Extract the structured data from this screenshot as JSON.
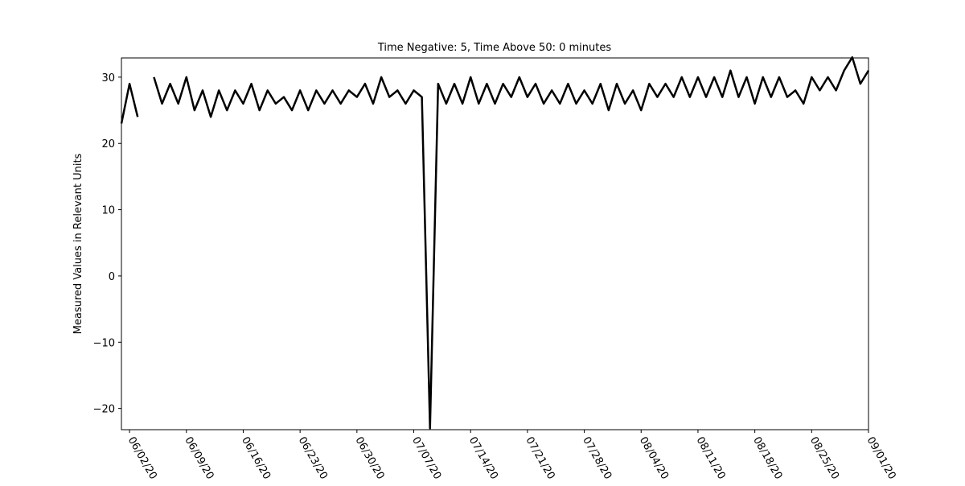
{
  "chart_data": {
    "type": "line",
    "title": "Time Negative: 5, Time Above 50: 0 minutes",
    "y_label": "Measured Values in Relevant Units",
    "x": [
      "2020-06-01",
      "2020-06-02",
      "2020-06-03",
      "2020-06-04",
      "2020-06-05",
      "2020-06-06",
      "2020-06-07",
      "2020-06-08",
      "2020-06-09",
      "2020-06-10",
      "2020-06-11",
      "2020-06-12",
      "2020-06-13",
      "2020-06-14",
      "2020-06-15",
      "2020-06-16",
      "2020-06-17",
      "2020-06-18",
      "2020-06-19",
      "2020-06-20",
      "2020-06-21",
      "2020-06-22",
      "2020-06-23",
      "2020-06-24",
      "2020-06-25",
      "2020-06-26",
      "2020-06-27",
      "2020-06-28",
      "2020-06-29",
      "2020-06-30",
      "2020-07-01",
      "2020-07-02",
      "2020-07-03",
      "2020-07-04",
      "2020-07-05",
      "2020-07-06",
      "2020-07-07",
      "2020-07-08",
      "2020-07-09",
      "2020-07-10",
      "2020-07-11",
      "2020-07-12",
      "2020-07-13",
      "2020-07-14",
      "2020-07-15",
      "2020-07-16",
      "2020-07-17",
      "2020-07-18",
      "2020-07-19",
      "2020-07-20",
      "2020-07-21",
      "2020-07-22",
      "2020-07-23",
      "2020-07-24",
      "2020-07-25",
      "2020-07-26",
      "2020-07-27",
      "2020-07-28",
      "2020-07-29",
      "2020-07-30",
      "2020-07-31",
      "2020-08-01",
      "2020-08-02",
      "2020-08-03",
      "2020-08-04",
      "2020-08-05",
      "2020-08-06",
      "2020-08-07",
      "2020-08-08",
      "2020-08-09",
      "2020-08-10",
      "2020-08-11",
      "2020-08-12",
      "2020-08-13",
      "2020-08-14",
      "2020-08-15",
      "2020-08-16",
      "2020-08-17",
      "2020-08-18",
      "2020-08-19",
      "2020-08-20",
      "2020-08-21",
      "2020-08-22",
      "2020-08-23",
      "2020-08-24",
      "2020-08-25",
      "2020-08-26",
      "2020-08-27",
      "2020-08-28",
      "2020-08-29",
      "2020-08-30",
      "2020-08-31",
      "2020-09-01"
    ],
    "series": [
      {
        "color": "#000000",
        "values": [
          23,
          29,
          24,
          null,
          30,
          26,
          29,
          26,
          30,
          25,
          28,
          24,
          28,
          25,
          28,
          26,
          29,
          25,
          28,
          26,
          27,
          25,
          28,
          25,
          28,
          26,
          28,
          26,
          28,
          27,
          29,
          26,
          30,
          27,
          28,
          26,
          28,
          27,
          -23,
          29,
          26,
          29,
          26,
          30,
          26,
          29,
          26,
          29,
          27,
          30,
          27,
          29,
          26,
          28,
          26,
          29,
          26,
          28,
          26,
          29,
          25,
          29,
          26,
          28,
          25,
          29,
          27,
          29,
          27,
          30,
          27,
          30,
          27,
          30,
          27,
          31,
          27,
          30,
          26,
          30,
          27,
          30,
          27,
          28,
          26,
          30,
          28,
          30,
          28,
          31,
          33,
          29,
          31
        ]
      }
    ],
    "xlim": [
      "2020-06-01",
      "2020-09-01"
    ],
    "xticks": [
      {
        "value": "2020-06-02",
        "label": "06/02/20"
      },
      {
        "value": "2020-06-09",
        "label": "06/09/20"
      },
      {
        "value": "2020-06-16",
        "label": "06/16/20"
      },
      {
        "value": "2020-06-23",
        "label": "06/23/20"
      },
      {
        "value": "2020-06-30",
        "label": "06/30/20"
      },
      {
        "value": "2020-07-07",
        "label": "07/07/20"
      },
      {
        "value": "2020-07-14",
        "label": "07/14/20"
      },
      {
        "value": "2020-07-21",
        "label": "07/21/20"
      },
      {
        "value": "2020-07-28",
        "label": "07/28/20"
      },
      {
        "value": "2020-08-04",
        "label": "08/04/20"
      },
      {
        "value": "2020-08-11",
        "label": "08/11/20"
      },
      {
        "value": "2020-08-18",
        "label": "08/18/20"
      },
      {
        "value": "2020-08-25",
        "label": "08/25/20"
      },
      {
        "value": "2020-09-01",
        "label": "09/01/20"
      }
    ],
    "ylim": [
      -23.2,
      32.9
    ],
    "yticks": [
      {
        "value": -20,
        "label": "−20"
      },
      {
        "value": -10,
        "label": "−10"
      },
      0,
      10,
      20,
      30
    ],
    "grid": false
  }
}
